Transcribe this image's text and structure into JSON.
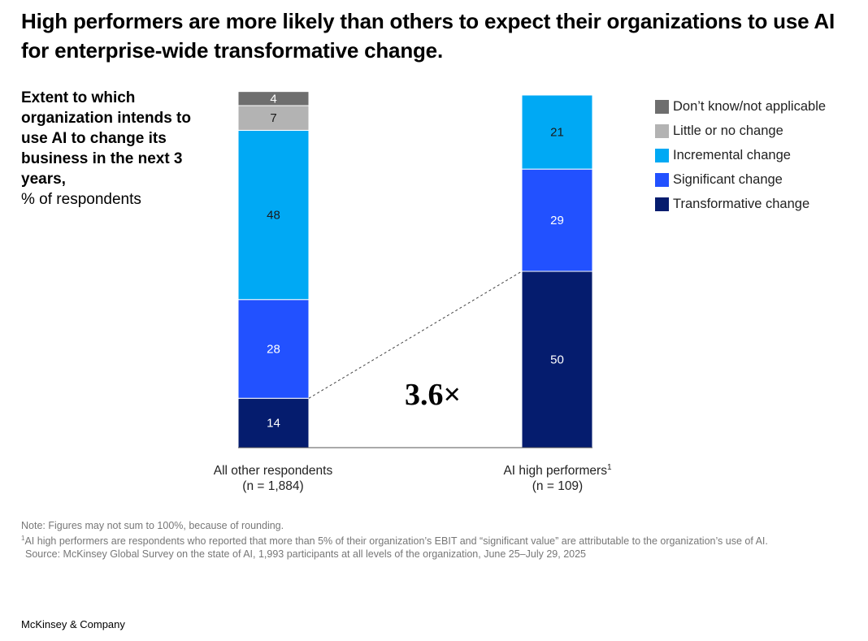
{
  "title": "High performers are more likely than others to expect their organizations to use AI for enterprise-wide transformative change.",
  "subtitle": {
    "bold": "Extent to which organization intends to use AI to change its business in the next 3 years,",
    "unit": "% of respondents"
  },
  "multiplier": "3.6×",
  "categories_display": [
    {
      "line1": "All other respondents",
      "sup": "",
      "line2": "(n = 1,884)"
    },
    {
      "line1": "AI high performers",
      "sup": "1",
      "line2": "(n = 109)"
    }
  ],
  "chart_data": {
    "type": "bar",
    "stacked": true,
    "categories": [
      "All other respondents",
      "AI high performers"
    ],
    "series": [
      {
        "name": "Transformative change",
        "color": "#051c6e",
        "values": [
          14,
          50
        ]
      },
      {
        "name": "Significant change",
        "color": "#2251ff",
        "values": [
          28,
          29
        ]
      },
      {
        "name": "Incremental change",
        "color": "#00a9f4",
        "values": [
          48,
          21
        ]
      },
      {
        "name": "Little or no change",
        "color": "#b3b3b3",
        "values": [
          7,
          0
        ]
      },
      {
        "name": "Don't know/not applicable",
        "color": "#6e6e6e",
        "values": [
          4,
          0
        ]
      }
    ],
    "ylim": [
      0,
      100
    ],
    "legend_position": "top-right",
    "grid": false,
    "annotation": "3.6×"
  },
  "legend": [
    {
      "label": "Don’t know/not applicable",
      "color": "#6e6e6e"
    },
    {
      "label": "Little or no change",
      "color": "#b3b3b3"
    },
    {
      "label": "Incremental change",
      "color": "#00a9f4"
    },
    {
      "label": "Significant change",
      "color": "#2251ff"
    },
    {
      "label": "Transformative change",
      "color": "#051c6e"
    }
  ],
  "notes": {
    "note": "Note: Figures may not sum to 100%, because of rounding.",
    "footnote_marker": "1",
    "footnote": "AI high performers are respondents who reported that more than 5% of their organization’s EBIT and “significant value” are attributable to the organization’s use of AI.",
    "source": "Source: McKinsey Global Survey on the state of AI, 1,993 participants at all levels of the organization, June 25–July 29, 2025"
  },
  "footer": "McKinsey & Company"
}
